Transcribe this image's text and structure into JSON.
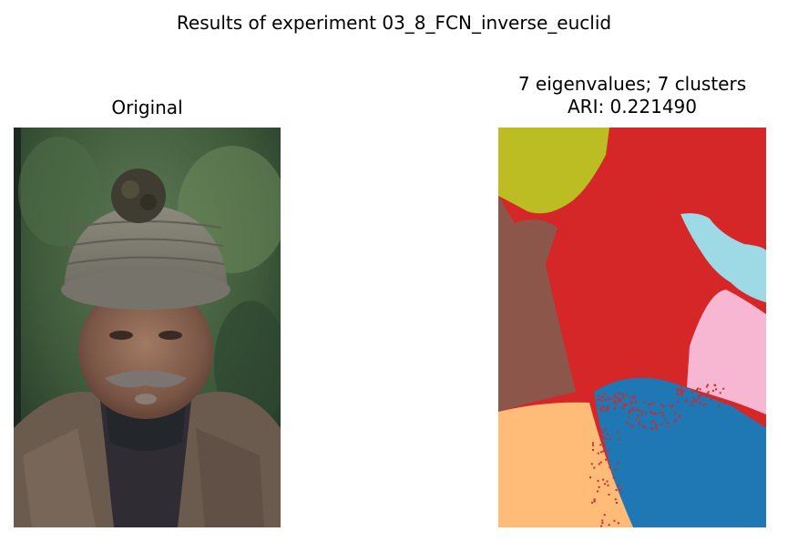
{
  "figure": {
    "title": "Results of experiment 03_8_FCN_inverse_euclid"
  },
  "panels": [
    {
      "title": "Original",
      "content": "photograph"
    },
    {
      "title_line1": "7 eigenvalues; 7 clusters",
      "title_line2": "ARI: 0.221490",
      "content": "segmentation-map"
    }
  ],
  "palette": {
    "cluster_olive": "#bcbd22",
    "cluster_red": "#d62728",
    "cluster_brown": "#8c564b",
    "cluster_cyan": "#9edae5",
    "cluster_pink": "#f7b6d2",
    "cluster_blue": "#1f77b4",
    "cluster_orange": "#ffbb78"
  }
}
